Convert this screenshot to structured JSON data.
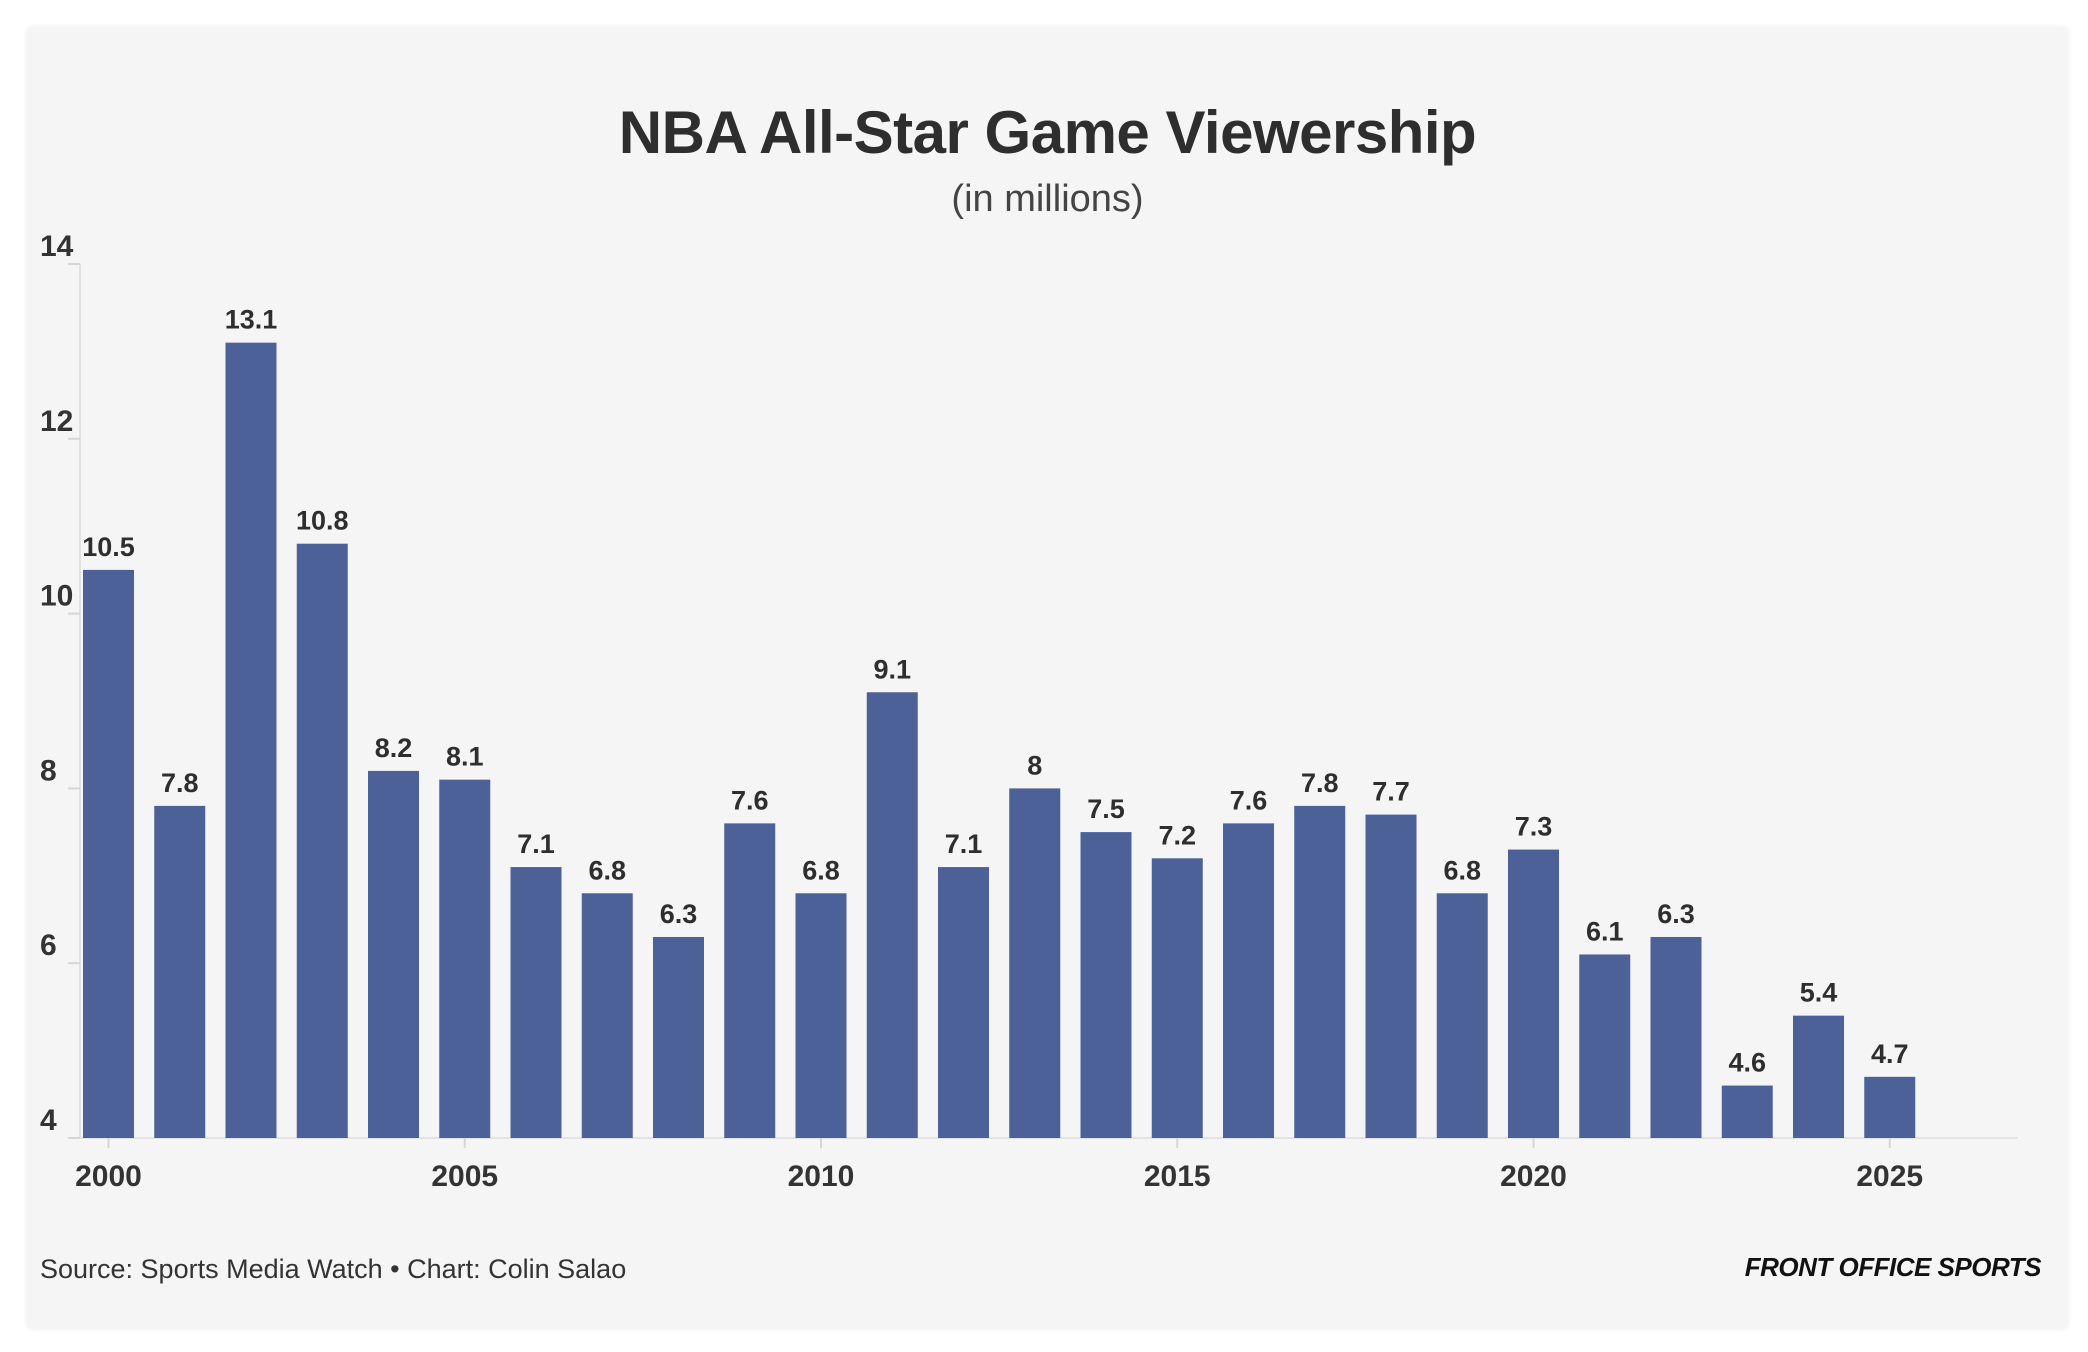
{
  "chart_data": {
    "type": "bar",
    "title": "NBA All-Star Game Viewership",
    "subtitle": "(in millions)",
    "xlabel": "",
    "ylabel": "",
    "categories": [
      2000,
      2001,
      2002,
      2003,
      2004,
      2005,
      2006,
      2007,
      2008,
      2009,
      2010,
      2011,
      2012,
      2013,
      2014,
      2015,
      2016,
      2017,
      2018,
      2019,
      2020,
      2021,
      2022,
      2023,
      2024,
      2025
    ],
    "values": [
      10.5,
      7.8,
      13.1,
      10.8,
      8.2,
      8.1,
      7.1,
      6.8,
      6.3,
      7.6,
      6.8,
      9.1,
      7.1,
      8,
      7.5,
      7.2,
      7.6,
      7.8,
      7.7,
      6.8,
      7.3,
      6.1,
      6.3,
      4.6,
      5.4,
      4.7
    ],
    "value_labels": [
      "10.5",
      "7.8",
      "13.1",
      "10.8",
      "8.2",
      "8.1",
      "7.1",
      "6.8",
      "6.3",
      "7.6",
      "6.8",
      "9.1",
      "7.1",
      "8",
      "7.5",
      "7.2",
      "7.6",
      "7.8",
      "7.7",
      "6.8",
      "7.3",
      "6.1",
      "6.3",
      "4.6",
      "5.4",
      "4.7"
    ],
    "ylim": [
      4,
      14
    ],
    "yticks": [
      4,
      6,
      8,
      10,
      12,
      14
    ],
    "xticks": [
      2000,
      2005,
      2010,
      2015,
      2020,
      2025
    ],
    "xlim": [
      1999.6,
      2026.8
    ],
    "grid": false,
    "bar_color": "#4c6198"
  },
  "footer": {
    "source": "Source: Sports Media Watch • Chart: Colin Salao",
    "brand": "FRONT OFFICE SPORTS"
  }
}
